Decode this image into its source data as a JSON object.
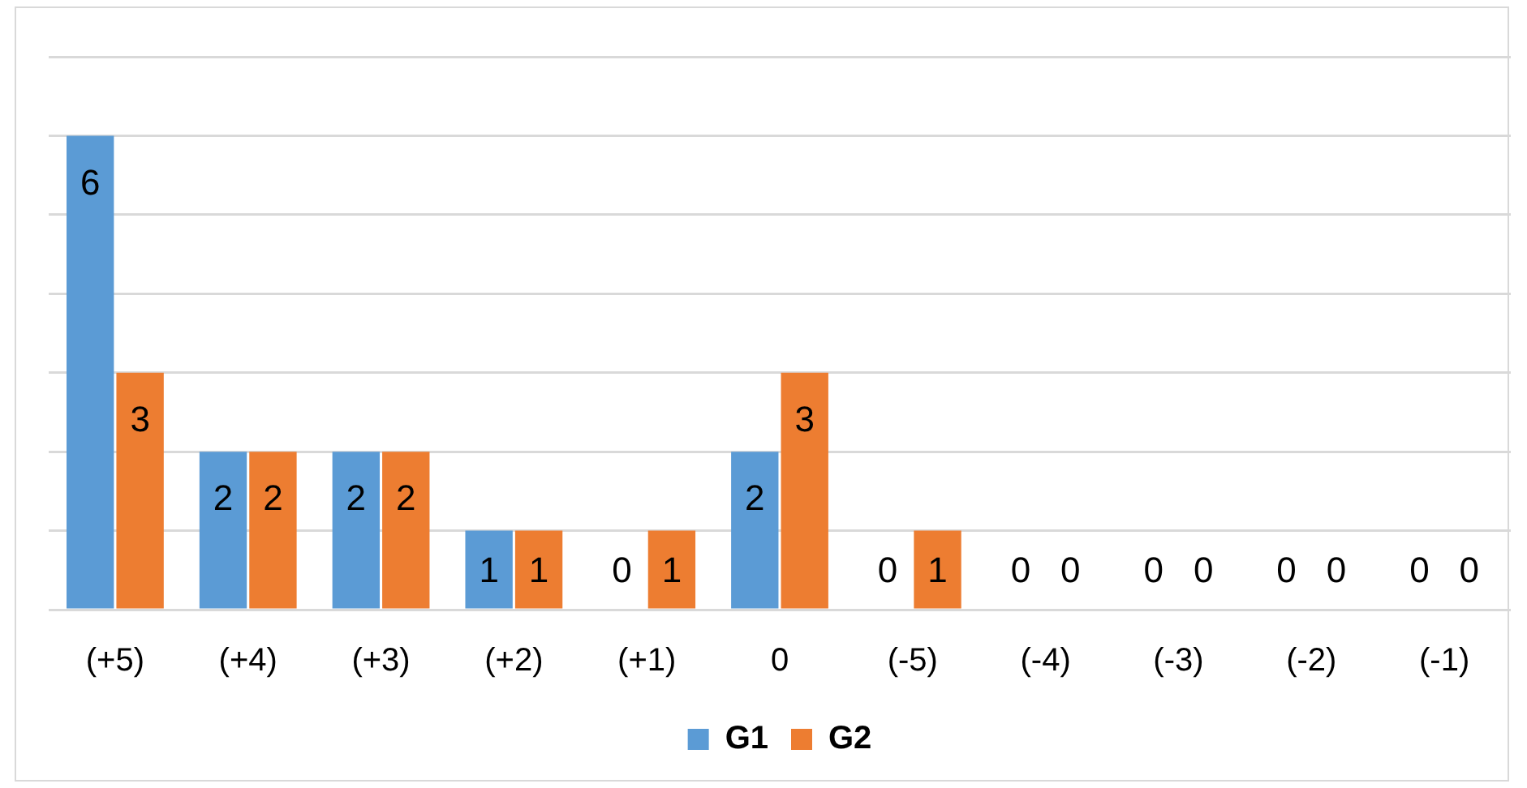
{
  "chart_data": {
    "type": "bar",
    "categories": [
      "(+5)",
      "(+4)",
      "(+3)",
      "(+2)",
      "(+1)",
      "0",
      "(-5)",
      "(-4)",
      "(-3)",
      "(-2)",
      "(-1)"
    ],
    "series": [
      {
        "name": "G1",
        "color": "#5b9bd5",
        "values": [
          6,
          2,
          2,
          1,
          0,
          2,
          0,
          0,
          0,
          0,
          0
        ]
      },
      {
        "name": "G2",
        "color": "#ed7d31",
        "values": [
          3,
          2,
          2,
          1,
          1,
          3,
          1,
          0,
          0,
          0,
          0
        ]
      }
    ],
    "ylim": [
      0,
      7
    ],
    "yticks": [
      {
        "value": 0,
        "label": null
      },
      {
        "value": 1,
        "label": null
      },
      {
        "value": 2,
        "label": null
      },
      {
        "value": 3,
        "label": null
      },
      {
        "value": 4,
        "label": null
      },
      {
        "value": 5,
        "label": null
      },
      {
        "value": 6,
        "label": null
      },
      {
        "value": 7,
        "label": null
      }
    ],
    "tick_labels": "x",
    "grid": "y",
    "legend": "bottom",
    "data_labels": true
  }
}
